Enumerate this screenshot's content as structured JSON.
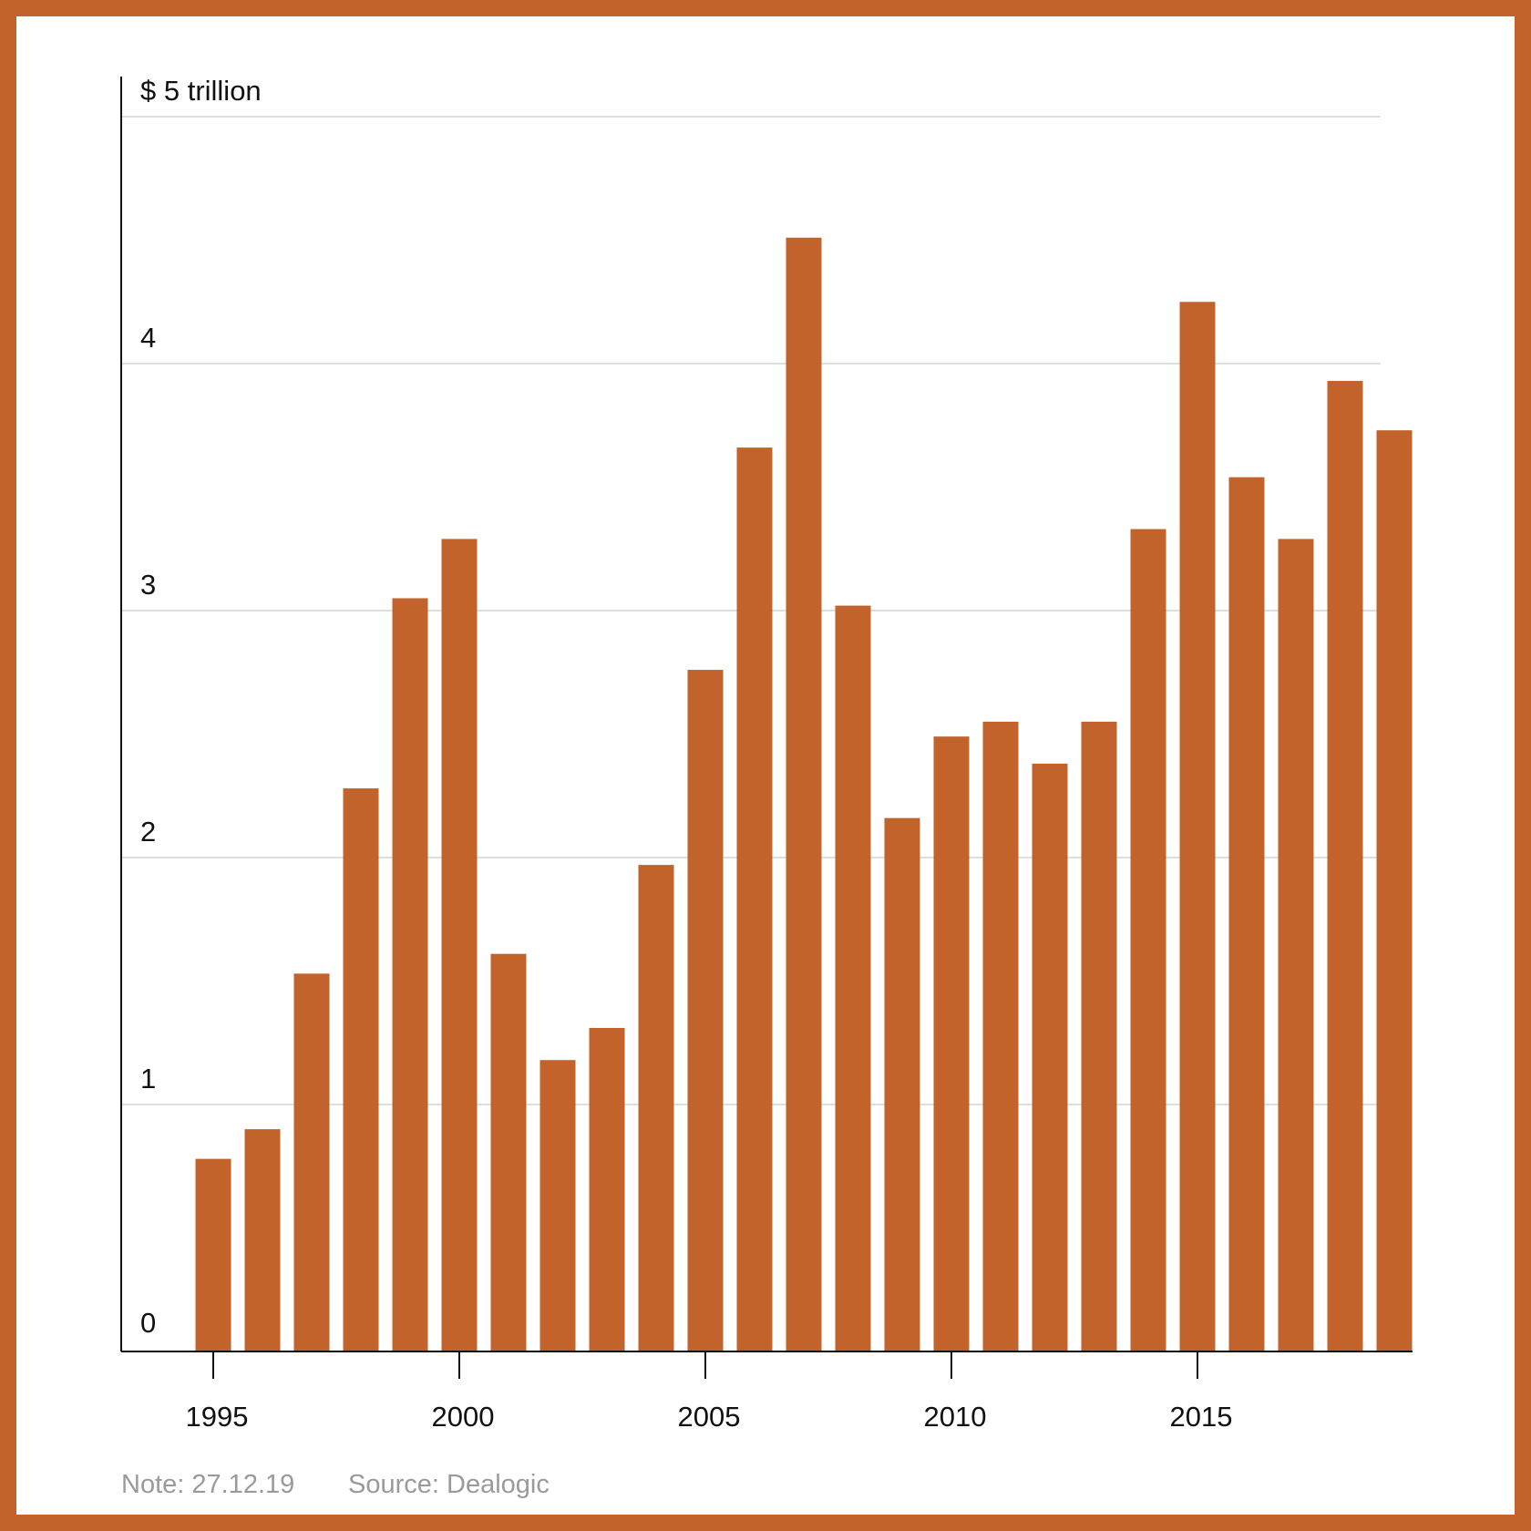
{
  "chart_data": {
    "type": "bar",
    "unit_label": "$ 5 trillion",
    "categories": [
      "1995",
      "1996",
      "1997",
      "1998",
      "1999",
      "2000",
      "2001",
      "2002",
      "2003",
      "2004",
      "2005",
      "2006",
      "2007",
      "2008",
      "2009",
      "2010",
      "2011",
      "2012",
      "2013",
      "2014",
      "2015",
      "2016",
      "2017",
      "2018",
      "2019"
    ],
    "values": [
      0.78,
      0.9,
      1.53,
      2.28,
      3.05,
      3.29,
      1.61,
      1.18,
      1.31,
      1.97,
      2.76,
      3.66,
      4.51,
      3.02,
      2.16,
      2.49,
      2.55,
      2.38,
      2.55,
      3.33,
      4.25,
      3.54,
      3.29,
      3.93,
      3.73
    ],
    "ylim": [
      0,
      5
    ],
    "y_ticks": [
      "0",
      "1",
      "2",
      "3",
      "4",
      "$ 5 trillion"
    ],
    "y_tick_values": [
      0,
      1,
      2,
      3,
      4,
      5
    ],
    "x_ticks": [
      "1995",
      "2000",
      "2005",
      "2010",
      "2015"
    ],
    "grid": true,
    "bar_color": "#c2632b",
    "xlabel": "",
    "ylabel": ""
  },
  "footer": {
    "note": "Note: 27.12.19",
    "source": "Source: Dealogic"
  },
  "colors": {
    "frame": "#c2632b",
    "grid": "#d4d4d4",
    "axis": "#111111",
    "footer_text": "#9a9a9a"
  }
}
